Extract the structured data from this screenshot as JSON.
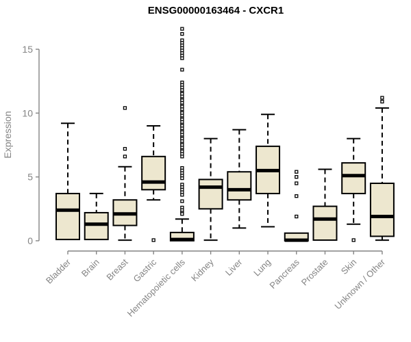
{
  "chart_data": {
    "type": "boxplot",
    "title": "ENSG00000163464 - CXCR1",
    "ylabel": "Expression",
    "xlabel": "",
    "yticks": [
      0,
      5,
      10,
      15
    ],
    "ylim": [
      -0.8,
      16.8
    ],
    "grid": false,
    "legend": "none",
    "categories": [
      "Bladder",
      "Brain",
      "Breast",
      "Gastric",
      "Hematopoietic cells",
      "Kidney",
      "Liver",
      "Lung",
      "Pancreas",
      "Prostate",
      "Skin",
      "Unknown / Other"
    ],
    "series": [
      {
        "category": "Bladder",
        "whisker_low": 0.1,
        "q1": 0.1,
        "median": 2.4,
        "q3": 3.7,
        "whisker_high": 9.2,
        "outliers": []
      },
      {
        "category": "Brain",
        "whisker_low": 0.1,
        "q1": 0.1,
        "median": 1.3,
        "q3": 2.2,
        "whisker_high": 3.7,
        "outliers": []
      },
      {
        "category": "Breast",
        "whisker_low": 0.05,
        "q1": 1.2,
        "median": 2.1,
        "q3": 3.2,
        "whisker_high": 5.8,
        "outliers": [
          10.4,
          7.2,
          6.6
        ]
      },
      {
        "category": "Gastric",
        "whisker_low": 3.2,
        "q1": 4.0,
        "median": 4.6,
        "q3": 6.6,
        "whisker_high": 9.0,
        "outliers": [
          0.05
        ]
      },
      {
        "category": "Hematopoietic cells",
        "whisker_low": 0.0,
        "q1": 0.0,
        "median": 0.1,
        "q3": 0.65,
        "whisker_high": 1.7,
        "outliers": [
          16.6,
          16.2,
          15.7,
          15.5,
          15.3,
          15.1,
          14.9,
          14.7,
          14.5,
          14.3,
          13.4,
          12.4,
          12.2,
          12.0,
          11.8,
          11.6,
          11.5,
          11.3,
          11.1,
          11.0,
          10.8,
          10.6,
          10.5,
          10.3,
          10.1,
          10.0,
          9.8,
          9.6,
          9.5,
          9.3,
          9.1,
          9.0,
          8.8,
          8.6,
          8.5,
          8.3,
          8.1,
          8.0,
          7.8,
          7.6,
          7.5,
          7.3,
          7.1,
          7.0,
          6.8,
          6.6,
          5.7,
          5.5,
          5.3,
          5.1,
          4.9,
          4.4,
          4.2,
          4.0,
          3.8,
          3.6,
          3.1,
          2.6,
          2.4,
          2.2,
          2.1
        ]
      },
      {
        "category": "Kidney",
        "whisker_low": 0.05,
        "q1": 2.5,
        "median": 4.2,
        "q3": 4.8,
        "whisker_high": 8.0,
        "outliers": []
      },
      {
        "category": "Liver",
        "whisker_low": 1.0,
        "q1": 3.2,
        "median": 4.0,
        "q3": 5.4,
        "whisker_high": 8.7,
        "outliers": []
      },
      {
        "category": "Lung",
        "whisker_low": 1.1,
        "q1": 3.7,
        "median": 5.5,
        "q3": 7.4,
        "whisker_high": 9.9,
        "outliers": []
      },
      {
        "category": "Pancreas",
        "whisker_low": 0.0,
        "q1": 0.0,
        "median": 0.05,
        "q3": 0.6,
        "whisker_high": 0.6,
        "outliers": [
          5.4,
          5.0,
          4.5,
          3.5,
          1.9
        ]
      },
      {
        "category": "Prostate",
        "whisker_low": 0.05,
        "q1": 0.05,
        "median": 1.7,
        "q3": 2.7,
        "whisker_high": 5.6,
        "outliers": []
      },
      {
        "category": "Skin",
        "whisker_low": 1.3,
        "q1": 3.7,
        "median": 5.1,
        "q3": 6.1,
        "whisker_high": 8.0,
        "outliers": [
          0.05
        ]
      },
      {
        "category": "Unknown / Other",
        "whisker_low": 0.05,
        "q1": 0.35,
        "median": 1.9,
        "q3": 4.5,
        "whisker_high": 10.4,
        "outliers": [
          11.2,
          10.9
        ]
      }
    ],
    "colors": {
      "box_fill": "#EDE7CF",
      "box_border": "#000000",
      "median": "#000000",
      "whisker": "#000000",
      "axis": "#848484",
      "label": "#848484",
      "title": "#000000",
      "background": "#FFFFFF"
    }
  }
}
